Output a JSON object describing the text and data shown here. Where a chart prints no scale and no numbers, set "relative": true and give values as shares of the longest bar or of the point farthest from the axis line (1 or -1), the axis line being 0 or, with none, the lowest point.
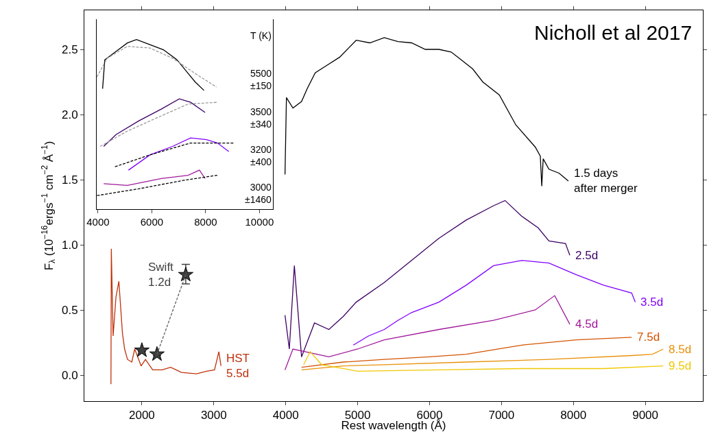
{
  "chart_data": [
    {
      "type": "line",
      "xlabel": "Rest wavelength (Å)",
      "ylabel": "F$_{λ}$ (10$^{−16}$ergs$^{−1}$ cm$^{−2}$ Å$^{−1}$)",
      "annotations": [
        "Nicholl et al 2017"
      ],
      "xlim": [
        1200,
        9800
      ],
      "xticks": [
        2000,
        3000,
        4000,
        5000,
        6000,
        7000,
        8000,
        9000
      ],
      "ylim": [
        -0.2,
        2.8
      ],
      "yticks": [
        {
          "value": 0,
          "label": "0.0"
        },
        0.5,
        {
          "value": 1,
          "label": "1.0"
        },
        1.5,
        {
          "value": 2,
          "label": "2.0"
        },
        2.5
      ],
      "grid": false,
      "legend": false,
      "line_style": "solid",
      "series": [
        {
          "name": "HST\n5.5d",
          "color": "#c0300a",
          "x": [
            1570,
            1575,
            1600,
            1640,
            1680,
            1730,
            1760,
            1800,
            1860,
            1900,
            1990,
            2050,
            2150,
            2280,
            2400,
            2550,
            2760,
            2900,
            3010,
            3070,
            3100
          ],
          "values": [
            -0.07,
            0.97,
            0.3,
            0.6,
            0.72,
            0.32,
            0.2,
            0.12,
            0.1,
            0.2,
            0.07,
            0.12,
            0.04,
            0.04,
            0.06,
            0.02,
            0.01,
            0.03,
            0.04,
            0.18,
            0.07
          ]
        },
        {
          "name": "Swift\n1.2d",
          "type": "scatter",
          "marker": "star",
          "color": "#404040",
          "x": [
            2000,
            2210,
            2610
          ],
          "values": [
            0.19,
            0.16,
            0.77
          ],
          "errors": [
            0.01,
            0.01,
            [
              0.7,
              0.85
            ]
          ]
        },
        {
          "type": "line",
          "line_style": "dashed",
          "color": "#606060",
          "x": [
            2210,
            2610
          ],
          "values": [
            0.16,
            0.77
          ]
        },
        {
          "name": "1.5 days\nafter merger",
          "color": "#000000",
          "x": [
            3990,
            4010,
            4100,
            4220,
            4300,
            4410,
            4580,
            4750,
            4980,
            5170,
            5370,
            5560,
            5750,
            5940,
            6130,
            6300,
            6440,
            6600,
            6740,
            6970,
            7200,
            7470,
            7540,
            7560,
            7580,
            7660,
            7800,
            7930
          ],
          "values": [
            1.54,
            2.13,
            2.05,
            2.1,
            2.2,
            2.32,
            2.38,
            2.44,
            2.57,
            2.55,
            2.59,
            2.56,
            2.55,
            2.5,
            2.5,
            2.48,
            2.42,
            2.35,
            2.25,
            2.15,
            1.92,
            1.75,
            1.68,
            1.45,
            1.66,
            1.58,
            1.55,
            1.49
          ]
        },
        {
          "name": "2.5d",
          "color": "#3d0066",
          "x": [
            3990,
            4050,
            4120,
            4220,
            4400,
            4600,
            4800,
            4980,
            5370,
            5750,
            6130,
            6510,
            6890,
            7050,
            7280,
            7510,
            7660,
            7890,
            7950
          ],
          "values": [
            0.46,
            0.2,
            0.84,
            0.14,
            0.4,
            0.35,
            0.45,
            0.56,
            0.71,
            0.88,
            1.05,
            1.19,
            1.3,
            1.34,
            1.22,
            1.13,
            1.03,
            1.01,
            0.92
          ]
        },
        {
          "name": "3.5d",
          "color": "#8000ff",
          "x": [
            4940,
            5150,
            5370,
            5560,
            5750,
            6130,
            6510,
            6890,
            7280,
            7660,
            8040,
            8420,
            8810,
            8860
          ],
          "values": [
            0.23,
            0.3,
            0.35,
            0.42,
            0.48,
            0.56,
            0.69,
            0.84,
            0.88,
            0.86,
            0.77,
            0.69,
            0.63,
            0.56
          ]
        },
        {
          "name": "4.5d",
          "color": "#a0189a",
          "x": [
            3990,
            4100,
            4600,
            5000,
            5370,
            6130,
            6890,
            7470,
            7740,
            7950
          ],
          "values": [
            0.04,
            0.2,
            0.14,
            0.2,
            0.27,
            0.35,
            0.42,
            0.5,
            0.61,
            0.39
          ]
        },
        {
          "name": "7.5d",
          "color": "#d35400",
          "x": [
            4220,
            4800,
            5370,
            6000,
            6510,
            7280,
            8040,
            8810
          ],
          "values": [
            0.06,
            0.1,
            0.12,
            0.14,
            0.16,
            0.23,
            0.27,
            0.29
          ]
        },
        {
          "name": "8.5d",
          "color": "#e8900a",
          "x": [
            4220,
            4800,
            5370,
            6510,
            7660,
            8810,
            9100,
            9250
          ],
          "values": [
            0.04,
            0.07,
            0.08,
            0.1,
            0.12,
            0.15,
            0.16,
            0.2
          ]
        },
        {
          "name": "9.5d",
          "color": "#f0c800",
          "x": [
            4250,
            4340,
            4500,
            5000,
            6130,
            7280,
            8420,
            9250
          ],
          "values": [
            0.08,
            0.18,
            0.08,
            0.03,
            0.04,
            0.05,
            0.05,
            0.07
          ]
        }
      ]
    },
    {
      "type": "line",
      "relative": true,
      "tick_labels": "x",
      "grid": false,
      "legend": false,
      "line_style": "solid",
      "annotations": [
        "T (K)",
        "5500\n±150",
        "3500\n±340",
        "3200\n±400",
        "3000\n±1460"
      ],
      "xlim": [
        3950,
        10500
      ],
      "xticks": [
        4000,
        6000,
        8000,
        10000
      ],
      "series": [
        {
          "color": "#000000",
          "x": [
            4170,
            4250,
            4670,
            5090,
            5430,
            5930,
            6430,
            6940,
            7350,
            7610,
            7940
          ],
          "values": [
            0.71,
            0.88,
            0.93,
            0.98,
            1.0,
            0.97,
            0.94,
            0.88,
            0.8,
            0.75,
            0.7
          ]
        },
        {
          "color": "#999999",
          "line_style": "dashed",
          "x": [
            3960,
            4340,
            5090,
            5930,
            6770,
            7610,
            8400
          ],
          "values": [
            0.78,
            0.89,
            0.96,
            0.95,
            0.89,
            0.8,
            0.72
          ]
        },
        {
          "color": "#3d0066",
          "x": [
            4210,
            4670,
            5510,
            6350,
            7020,
            7440,
            7980
          ],
          "values": [
            0.37,
            0.44,
            0.52,
            0.59,
            0.65,
            0.63,
            0.57
          ]
        },
        {
          "color": "#999999",
          "line_style": "dashed",
          "x": [
            4080,
            5090,
            6350,
            7350,
            8440
          ],
          "values": [
            0.37,
            0.46,
            0.55,
            0.62,
            0.63
          ]
        },
        {
          "color": "#8000ff",
          "x": [
            5130,
            5930,
            6770,
            7440,
            8030,
            8440,
            8860
          ],
          "values": [
            0.23,
            0.32,
            0.37,
            0.42,
            0.41,
            0.39,
            0.34
          ]
        },
        {
          "color": "#000000",
          "line_style": "dashed",
          "x": [
            4630,
            5930,
            7440,
            9070
          ],
          "values": [
            0.25,
            0.32,
            0.39,
            0.39
          ]
        },
        {
          "color": "#a0189a",
          "x": [
            4210,
            5090,
            6350,
            7350,
            7770,
            7980
          ],
          "values": [
            0.15,
            0.14,
            0.18,
            0.2,
            0.23,
            0.18
          ]
        },
        {
          "color": "#000000",
          "line_style": "dashed",
          "x": [
            3960,
            5510,
            7190,
            8440
          ],
          "values": [
            0.08,
            0.12,
            0.17,
            0.2
          ]
        }
      ]
    }
  ]
}
